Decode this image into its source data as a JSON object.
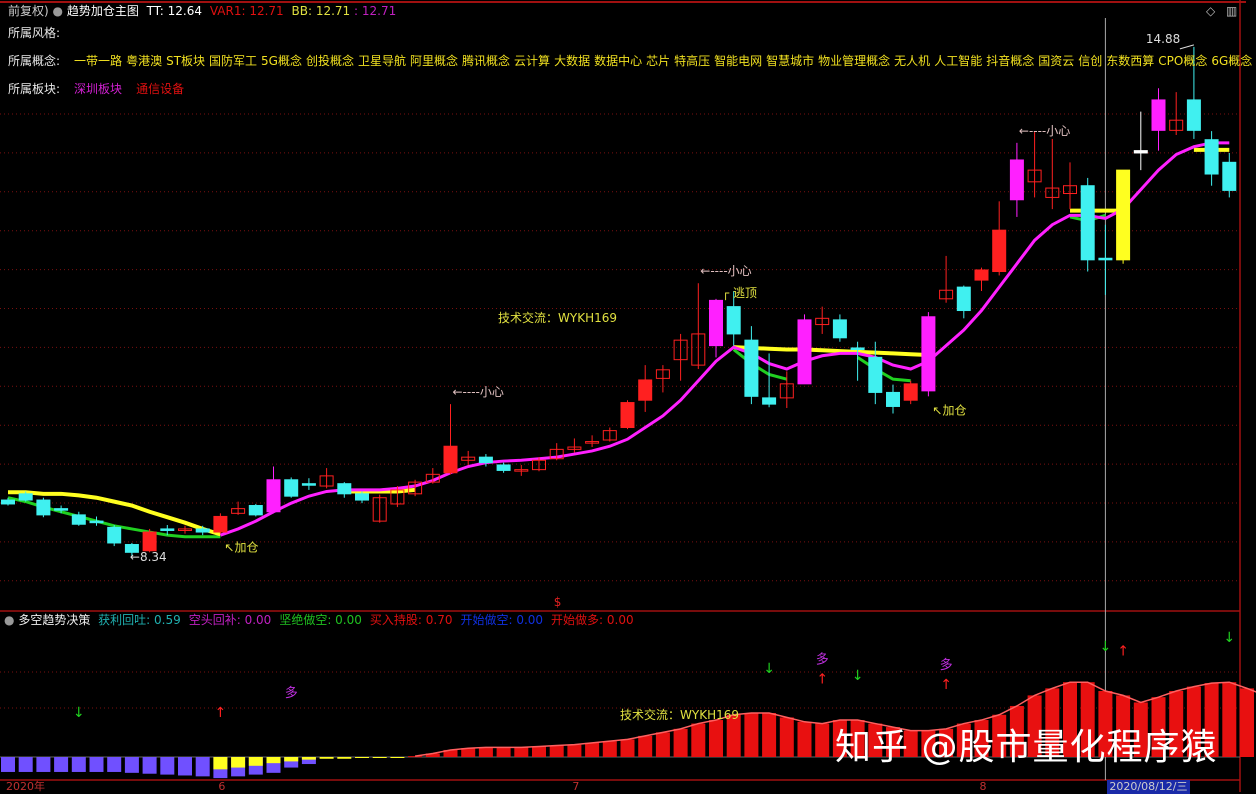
{
  "header": {
    "prefix": "前复权)",
    "indicator_name": "趋势加仓主图",
    "tt": "TT: 12.64",
    "var1": "VAR1: 12.71",
    "bb": "BB: 12.71",
    "extra": ": 12.71"
  },
  "info": {
    "style_label": "所属风格:",
    "concept_label": "所属概念:",
    "concepts": [
      "一带一路",
      "粤港澳",
      "ST板块",
      "国防军工",
      "5G概念",
      "创投概念",
      "卫星导航",
      "阿里概念",
      "腾讯概念",
      "云计算",
      "大数据",
      "数据中心",
      "芯片",
      "特高压",
      "智能电网",
      "智慧城市",
      "物业管理概念",
      "无人机",
      "人工智能",
      "抖音概念",
      "国资云",
      "信创",
      "东数西算",
      "CPO概念",
      "6G概念"
    ],
    "sector_label": "所属板块:",
    "sectors": [
      {
        "name": "深圳板块",
        "color": "#d020d0"
      },
      {
        "name": "通信设备",
        "color": "#e01010"
      }
    ]
  },
  "lower_header": {
    "name": "多空趋势决策",
    "items": [
      {
        "label": "获利回吐: 0.59",
        "color": "#20b0b0"
      },
      {
        "label": "空头回补: 0.00",
        "color": "#c020c0"
      },
      {
        "label": "坚绝做空: 0.00",
        "color": "#20c020"
      },
      {
        "label": "买入持股: 0.70",
        "color": "#e01010"
      },
      {
        "label": "开始做空: 0.00",
        "color": "#1030e0"
      },
      {
        "label": "开始做多: 0.00",
        "color": "#e01010"
      }
    ]
  },
  "annotations": {
    "low": "←8.34",
    "high": "14.88",
    "add": "↖加仓",
    "caution": "←----小心",
    "escape": "逃顶",
    "contact": "技术交流：WYKH169",
    "dollar": "$"
  },
  "x_axis": {
    "labels": [
      {
        "text": "2020年",
        "i": 1
      },
      {
        "text": "6",
        "i": 13
      },
      {
        "text": "7",
        "i": 33
      },
      {
        "text": "8",
        "i": 56
      }
    ],
    "cursor_date": "2020/08/12/三"
  },
  "watermark": "知乎 @股市量化程序猿",
  "colors": {
    "up": "#ff2020",
    "down": "#40f0f0",
    "magenta": "#ff20ff",
    "yellow": "#ffff20",
    "green": "#20d020",
    "grid": "#7a1010",
    "blue": "#7050ff"
  },
  "chart_data": {
    "type": "candlestick",
    "price_range": [
      8.34,
      14.88
    ],
    "cursor_index": 63,
    "candles": [
      [
        9.07,
        9.02,
        9.1,
        9.0,
        "down"
      ],
      [
        9.15,
        9.07,
        9.18,
        9.05,
        "down"
      ],
      [
        9.07,
        8.88,
        9.1,
        8.85,
        "down"
      ],
      [
        8.96,
        8.94,
        9.0,
        8.9,
        "down"
      ],
      [
        8.88,
        8.76,
        8.92,
        8.74,
        "down"
      ],
      [
        8.8,
        8.78,
        8.86,
        8.74,
        "down"
      ],
      [
        8.72,
        8.52,
        8.75,
        8.48,
        "down"
      ],
      [
        8.5,
        8.4,
        8.52,
        8.34,
        "down"
      ],
      [
        8.42,
        8.66,
        8.7,
        8.4,
        "red"
      ],
      [
        8.7,
        8.68,
        8.75,
        8.62,
        "down"
      ],
      [
        8.68,
        8.7,
        8.74,
        8.64,
        "hollow"
      ],
      [
        8.7,
        8.66,
        8.74,
        8.62,
        "down"
      ],
      [
        8.66,
        8.86,
        8.9,
        8.64,
        "red"
      ],
      [
        8.9,
        8.96,
        9.05,
        8.88,
        "hollow"
      ],
      [
        9.0,
        8.88,
        9.02,
        8.86,
        "down"
      ],
      [
        8.92,
        9.33,
        9.5,
        8.9,
        "magenta"
      ],
      [
        9.33,
        9.12,
        9.36,
        9.1,
        "down"
      ],
      [
        9.28,
        9.26,
        9.35,
        9.2,
        "down"
      ],
      [
        9.25,
        9.38,
        9.48,
        9.22,
        "hollow"
      ],
      [
        9.28,
        9.15,
        9.3,
        9.1,
        "down"
      ],
      [
        9.15,
        9.07,
        9.18,
        9.03,
        "down"
      ],
      [
        8.8,
        9.1,
        9.14,
        8.78,
        "hollow"
      ],
      [
        9.02,
        9.2,
        9.25,
        8.98,
        "hollow"
      ],
      [
        9.15,
        9.3,
        9.33,
        9.12,
        "hollow"
      ],
      [
        9.3,
        9.4,
        9.48,
        9.28,
        "hollow"
      ],
      [
        9.42,
        9.76,
        10.3,
        9.4,
        "red"
      ],
      [
        9.58,
        9.62,
        9.7,
        9.52,
        "hollow"
      ],
      [
        9.62,
        9.55,
        9.66,
        9.5,
        "down"
      ],
      [
        9.52,
        9.45,
        9.55,
        9.42,
        "down"
      ],
      [
        9.45,
        9.46,
        9.52,
        9.38,
        "hollow"
      ],
      [
        9.46,
        9.58,
        9.62,
        9.44,
        "hollow"
      ],
      [
        9.6,
        9.72,
        9.8,
        9.58,
        "hollow"
      ],
      [
        9.72,
        9.75,
        9.86,
        9.68,
        "hollow"
      ],
      [
        9.8,
        9.82,
        9.9,
        9.75,
        "hollow"
      ],
      [
        9.84,
        9.96,
        10.0,
        9.82,
        "hollow"
      ],
      [
        10.0,
        10.32,
        10.35,
        9.98,
        "red"
      ],
      [
        10.35,
        10.61,
        10.8,
        10.2,
        "red"
      ],
      [
        10.63,
        10.74,
        10.8,
        10.45,
        "hollow"
      ],
      [
        10.87,
        11.12,
        11.2,
        10.6,
        "hollow"
      ],
      [
        10.8,
        11.2,
        11.85,
        10.75,
        "hollow"
      ],
      [
        11.05,
        11.63,
        11.65,
        10.9,
        "magenta"
      ],
      [
        11.55,
        11.2,
        11.75,
        11.05,
        "down"
      ],
      [
        11.12,
        10.4,
        11.3,
        10.3,
        "down"
      ],
      [
        10.38,
        10.3,
        10.95,
        10.26,
        "down"
      ],
      [
        10.38,
        10.56,
        10.72,
        10.25,
        "hollow"
      ],
      [
        10.56,
        11.38,
        11.45,
        10.56,
        "magenta"
      ],
      [
        11.32,
        11.4,
        11.55,
        11.2,
        "hollow"
      ],
      [
        11.38,
        11.15,
        11.45,
        11.1,
        "down"
      ],
      [
        11.0,
        11.02,
        11.1,
        10.6,
        "down"
      ],
      [
        10.9,
        10.45,
        11.1,
        10.3,
        "down"
      ],
      [
        10.45,
        10.27,
        10.55,
        10.18,
        "down"
      ],
      [
        10.35,
        10.56,
        10.6,
        10.3,
        "red"
      ],
      [
        10.47,
        11.42,
        11.48,
        10.4,
        "magenta"
      ],
      [
        11.65,
        11.76,
        12.2,
        11.6,
        "hollow"
      ],
      [
        11.8,
        11.5,
        11.82,
        11.4,
        "down"
      ],
      [
        11.89,
        12.02,
        12.05,
        11.75,
        "red"
      ],
      [
        12.0,
        12.53,
        12.9,
        11.95,
        "red"
      ],
      [
        12.92,
        13.43,
        13.65,
        12.7,
        "magenta"
      ],
      [
        13.15,
        13.3,
        13.8,
        12.95,
        "hollow"
      ],
      [
        12.95,
        13.07,
        13.7,
        12.8,
        "hollow"
      ],
      [
        13.0,
        13.1,
        13.4,
        12.8,
        "hollow"
      ],
      [
        13.1,
        12.15,
        13.2,
        12.0,
        "down"
      ],
      [
        12.15,
        12.17,
        12.6,
        11.7,
        "down"
      ],
      [
        12.15,
        13.3,
        13.3,
        12.1,
        "yellow"
      ],
      [
        13.52,
        13.55,
        14.05,
        13.3,
        "white"
      ],
      [
        13.81,
        14.2,
        14.35,
        13.55,
        "magenta"
      ],
      [
        13.81,
        13.94,
        14.3,
        13.75,
        "hollow"
      ],
      [
        14.2,
        13.81,
        14.88,
        13.7,
        "down"
      ],
      [
        13.69,
        13.25,
        13.8,
        13.1,
        "down"
      ],
      [
        13.4,
        13.04,
        13.52,
        12.95,
        "down"
      ]
    ],
    "trend_line": [
      null,
      null,
      null,
      null,
      null,
      null,
      null,
      null,
      null,
      null,
      null,
      null,
      8.62,
      8.7,
      8.8,
      8.92,
      9.03,
      9.12,
      9.18,
      9.2,
      9.2,
      9.2,
      9.22,
      9.25,
      9.32,
      9.42,
      9.5,
      9.55,
      9.57,
      9.58,
      9.6,
      9.62,
      9.66,
      9.7,
      9.76,
      9.85,
      10.0,
      10.15,
      10.35,
      10.6,
      10.85,
      11.03,
      10.95,
      10.82,
      10.75,
      10.85,
      10.92,
      10.95,
      10.95,
      10.9,
      10.8,
      10.75,
      10.85,
      11.05,
      11.25,
      11.5,
      11.8,
      12.1,
      12.4,
      12.6,
      12.72,
      12.72,
      12.68,
      12.8,
      13.05,
      13.3,
      13.5,
      13.6,
      13.65,
      13.65
    ],
    "yellow_line": [
      9.17,
      9.17,
      9.15,
      9.15,
      9.13,
      9.1,
      9.05,
      9.0,
      8.92,
      8.85,
      8.78,
      8.7,
      8.63,
      null,
      null,
      null,
      null,
      null,
      null,
      9.18,
      9.18,
      9.18,
      9.18,
      9.2,
      null,
      null,
      null,
      null,
      null,
      null,
      null,
      null,
      null,
      null,
      null,
      null,
      null,
      null,
      null,
      null,
      null,
      11.03,
      11.02,
      11.01,
      11.0,
      11.0,
      10.99,
      10.98,
      10.97,
      10.96,
      10.95,
      10.94,
      10.93,
      null,
      null,
      null,
      null,
      null,
      null,
      null,
      12.78,
      12.78,
      12.78,
      12.78,
      null,
      null,
      null,
      13.56,
      13.56,
      13.56
    ],
    "green_line": [
      9.1,
      9.05,
      8.98,
      8.92,
      8.86,
      8.8,
      8.74,
      8.7,
      8.66,
      8.62,
      8.6,
      8.6,
      8.6,
      null,
      null,
      null,
      null,
      null,
      null,
      null,
      null,
      null,
      null,
      null,
      null,
      null,
      null,
      null,
      null,
      null,
      null,
      null,
      null,
      null,
      null,
      null,
      null,
      null,
      null,
      null,
      null,
      11.0,
      10.82,
      10.68,
      10.62,
      null,
      null,
      null,
      10.9,
      10.75,
      10.62,
      10.6,
      null,
      null,
      null,
      null,
      null,
      null,
      null,
      null,
      12.7,
      12.65,
      12.72,
      null,
      null,
      null,
      null,
      null,
      null,
      null
    ],
    "oscillator_blue": [
      -0.17,
      -0.17,
      -0.17,
      -0.17,
      -0.17,
      -0.17,
      -0.17,
      -0.18,
      -0.19,
      -0.2,
      -0.21,
      -0.22,
      -0.24,
      -0.22,
      -0.2,
      -0.18,
      -0.12,
      -0.08
    ],
    "oscillator_yellow": [
      null,
      null,
      null,
      null,
      null,
      null,
      null,
      null,
      null,
      null,
      null,
      null,
      -0.14,
      -0.12,
      -0.1,
      -0.07,
      -0.05,
      -0.03,
      -0.02,
      -0.02,
      -0.01,
      -0.01,
      -0.01
    ],
    "oscillator_red": [
      null,
      null,
      null,
      null,
      null,
      null,
      null,
      null,
      null,
      null,
      null,
      null,
      null,
      null,
      null,
      null,
      null,
      null,
      null,
      null,
      null,
      null,
      null,
      0.01,
      0.04,
      0.08,
      0.1,
      0.11,
      0.11,
      0.11,
      0.12,
      0.13,
      0.14,
      0.16,
      0.18,
      0.2,
      0.24,
      0.28,
      0.32,
      0.38,
      0.42,
      0.48,
      0.5,
      0.5,
      0.45,
      0.4,
      0.38,
      0.42,
      0.42,
      0.38,
      0.34,
      0.3,
      0.3,
      0.32,
      0.38,
      0.42,
      0.48,
      0.58,
      0.7,
      0.78,
      0.85,
      0.85,
      0.75,
      0.7,
      0.62,
      0.68,
      0.75,
      0.8,
      0.84,
      0.85,
      0.78,
      0.7
    ],
    "signals": [
      {
        "i": 5,
        "type": "sell"
      },
      {
        "i": 13,
        "type": "buy"
      },
      {
        "i": 17,
        "type": "duo"
      },
      {
        "i": 44,
        "type": "sell"
      },
      {
        "i": 47,
        "type": "buy"
      },
      {
        "i": 47,
        "type": "duo"
      },
      {
        "i": 49,
        "type": "sell"
      },
      {
        "i": 54,
        "type": "buy"
      },
      {
        "i": 54,
        "type": "duo"
      },
      {
        "i": 63,
        "type": "sell"
      },
      {
        "i": 64,
        "type": "buy"
      },
      {
        "i": 70,
        "type": "sell"
      }
    ],
    "annotation_points": {
      "low": 8,
      "high": 68,
      "add": [
        13,
        53
      ],
      "caution": [
        26,
        40,
        58
      ],
      "escape": 41
    }
  }
}
